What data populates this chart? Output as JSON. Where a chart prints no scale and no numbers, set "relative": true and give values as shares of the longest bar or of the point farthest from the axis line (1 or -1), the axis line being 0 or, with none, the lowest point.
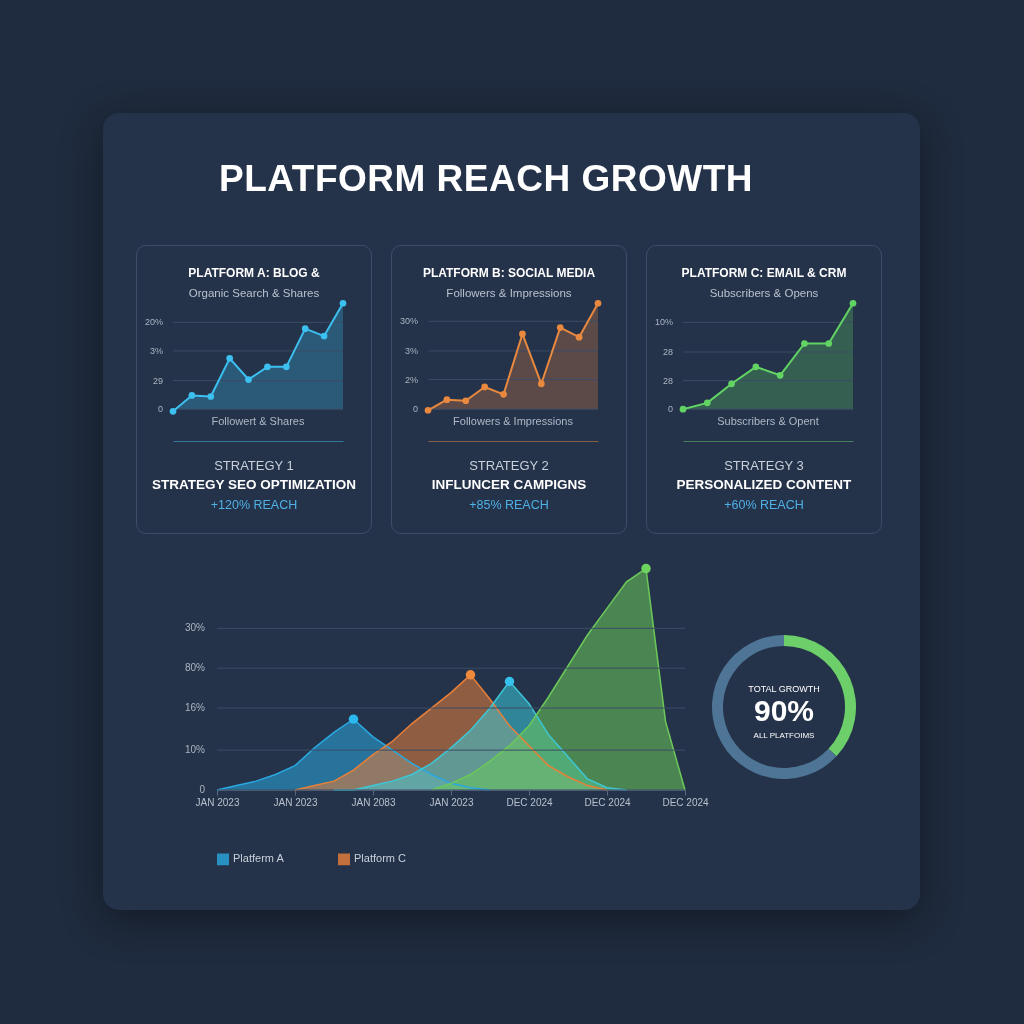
{
  "chart_data": [
    {
      "type": "other",
      "title": "PLATFORM REACH GROWTH"
    },
    {
      "type": "area",
      "title": "PLATFORM A: BLOG &",
      "subtitle": "Organic Search & Shares",
      "relative": true,
      "categories": [
        null,
        null,
        null,
        null,
        null,
        null,
        null,
        null,
        null,
        null
      ],
      "values": [
        -0.02,
        0.13,
        0.12,
        0.48,
        0.28,
        0.4,
        0.4,
        0.76,
        0.69,
        1
      ],
      "color": "#3cc0f0",
      "marker": "circle",
      "ref_lines": [
        {
          "axis": "y",
          "value": 0.82
        },
        {
          "axis": "y",
          "value": 0.55
        },
        {
          "axis": "y",
          "value": 0.27
        },
        {
          "axis": "y",
          "value": 0
        }
      ],
      "annotations": [
        "Followert & Shares",
        "STRATEGY 1",
        "STRATEGY SEO OPTIMIZATION",
        "+120% REACH",
        "20%",
        "3%",
        "29",
        "0"
      ]
    },
    {
      "type": "area",
      "title": "PLATFORM B: SOCIAL MEDIA",
      "subtitle": "Followers & Impressions",
      "relative": true,
      "categories": [
        null,
        null,
        null,
        null,
        null,
        null,
        null,
        null,
        null,
        null
      ],
      "values": [
        -0.01,
        0.09,
        0.08,
        0.21,
        0.14,
        0.71,
        0.24,
        0.77,
        0.68,
        1
      ],
      "color": "#e8893f",
      "marker": "circle",
      "ref_lines": [
        {
          "axis": "y",
          "value": 0.83
        },
        {
          "axis": "y",
          "value": 0.55
        },
        {
          "axis": "y",
          "value": 0.28
        },
        {
          "axis": "y",
          "value": 0
        }
      ],
      "annotations": [
        "Followers & Impressions",
        "STRATEGY 2",
        "INFLUNCER CAMPIGNS",
        "+85% REACH",
        "30%",
        "3%",
        "2%",
        "0"
      ]
    },
    {
      "type": "area",
      "title": "PLATFORM C: EMAIL & CRM",
      "subtitle": "Subscribers & Opens",
      "relative": true,
      "categories": [
        null,
        null,
        null,
        null,
        null,
        null,
        null,
        null
      ],
      "values": [
        0,
        0.06,
        0.24,
        0.4,
        0.32,
        0.62,
        0.62,
        1
      ],
      "color": "#62d464",
      "marker": "circle",
      "ref_lines": [
        {
          "axis": "y",
          "value": 0.82
        },
        {
          "axis": "y",
          "value": 0.54
        },
        {
          "axis": "y",
          "value": 0.27
        },
        {
          "axis": "y",
          "value": 0
        }
      ],
      "annotations": [
        "Subscribers & Opent",
        "STRATEGY 3",
        "PERSONALIZED CONTENT",
        "+60% REACH",
        "10%",
        "28",
        "28",
        "0"
      ]
    },
    {
      "type": "area",
      "relative": true,
      "categories": [
        "JAN 2023",
        null,
        null,
        null,
        "JAN 2023",
        null,
        null,
        null,
        "JAN 2083",
        null,
        null,
        null,
        "JAN 2023",
        null,
        null,
        null,
        "DEC 2024",
        null,
        null,
        null,
        "DEC 2024",
        null,
        null,
        null,
        "DEC 2024"
      ],
      "legend": "bottom",
      "ref_lines": [
        {
          "axis": "y",
          "value": 0.73
        },
        {
          "axis": "y",
          "value": 0.55
        },
        {
          "axis": "y",
          "value": 0.37
        },
        {
          "axis": "y",
          "value": 0.18
        },
        {
          "axis": "y",
          "value": 0
        }
      ],
      "annotations": [
        "30%",
        "80%",
        "16%",
        "10%",
        "0"
      ],
      "series": [
        {
          "name": "Platferm A",
          "color": "#2aa8e0",
          "values": [
            0,
            0.02,
            0.04,
            0.07,
            0.11,
            0.19,
            0.26,
            0.32,
            0.24,
            0.18,
            0.12,
            0.07,
            0.03,
            0.01,
            0,
            null,
            null,
            null,
            null,
            null,
            null,
            null,
            null,
            null,
            null
          ]
        },
        {
          "name": "Platform C",
          "color": "#e8803a",
          "values": [
            null,
            null,
            null,
            null,
            0,
            0.02,
            0.04,
            0.09,
            0.16,
            0.22,
            0.3,
            0.37,
            0.44,
            0.52,
            0.41,
            0.29,
            0.2,
            0.11,
            0.06,
            0.02,
            0,
            null,
            null,
            null,
            null
          ]
        },
        {
          "color": "#3cc8d8",
          "values": [
            null,
            null,
            null,
            null,
            null,
            null,
            0,
            0,
            0.02,
            0.04,
            0.07,
            0.12,
            0.19,
            0.27,
            0.37,
            0.49,
            0.39,
            0.25,
            0.15,
            0.05,
            0.01,
            0,
            null,
            null,
            null
          ]
        },
        {
          "color": "#6cc85a",
          "values": [
            null,
            null,
            null,
            null,
            null,
            null,
            null,
            null,
            null,
            null,
            null,
            0,
            0.03,
            0.07,
            0.13,
            0.2,
            0.29,
            0.42,
            0.56,
            0.7,
            0.82,
            0.94,
            1,
            0.31,
            0
          ]
        },
        {
          "type": "scatter",
          "marker": "circle",
          "values": [
            null,
            null,
            null,
            null,
            null,
            null,
            null,
            0.32,
            null,
            null,
            null,
            null,
            null,
            0.52,
            null,
            0.49,
            null,
            null,
            null,
            null,
            null,
            null,
            1,
            null,
            null
          ],
          "colors": [
            null,
            null,
            null,
            null,
            null,
            null,
            null,
            "#2ab8ee",
            null,
            null,
            null,
            null,
            null,
            "#ee8a3a",
            null,
            "#36c0ec",
            null,
            null,
            null,
            null,
            null,
            null,
            "#6cd45e",
            null,
            null
          ]
        }
      ]
    },
    {
      "type": "donut",
      "categories": [
        null,
        null
      ],
      "values": [
        37,
        63
      ],
      "colors": [
        "#6ccf6a",
        "#4f7596"
      ],
      "annotations": [
        "TOTAL GROWTH",
        "90%",
        "ALL PLATFOIMS"
      ]
    }
  ]
}
